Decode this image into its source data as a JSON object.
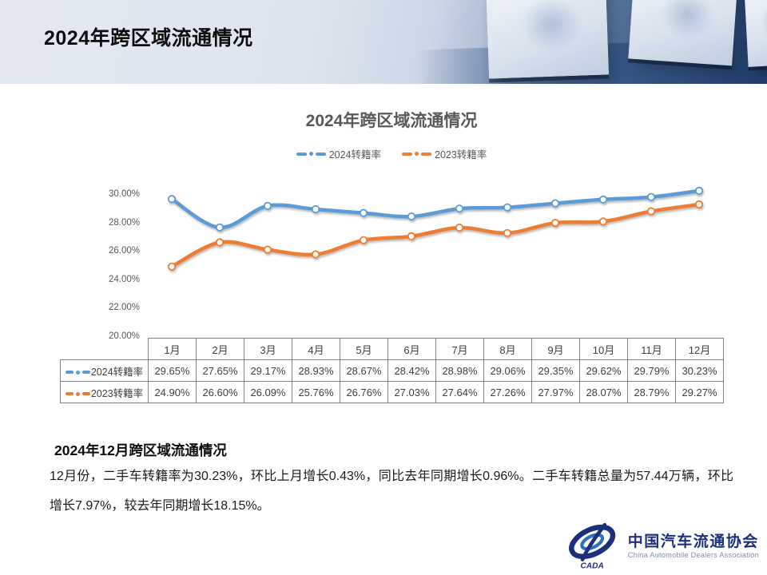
{
  "slide": {
    "header_title": "2024年跨区域流通情况",
    "section_title": "2024年12月跨区域流通情况",
    "body_text": "12月份，二手车转籍率为30.23%，环比上月增长0.43%，同比去年同期增长0.96%。二手车转籍总量为57.44万辆，环比增长7.97%，较去年同期增长18.15%。"
  },
  "chart_data": {
    "type": "line",
    "title": "2024年跨区域流通情况",
    "categories": [
      "1月",
      "2月",
      "3月",
      "4月",
      "5月",
      "6月",
      "7月",
      "8月",
      "9月",
      "10月",
      "11月",
      "12月"
    ],
    "series": [
      {
        "name": "2024转籍率",
        "color": "#5B9BD5",
        "values": [
          29.65,
          27.65,
          29.17,
          28.93,
          28.67,
          28.42,
          28.98,
          29.06,
          29.35,
          29.62,
          29.79,
          30.23
        ]
      },
      {
        "name": "2023转籍率",
        "color": "#ED7D31",
        "values": [
          24.9,
          26.6,
          26.09,
          25.76,
          26.76,
          27.03,
          27.64,
          27.26,
          27.97,
          28.07,
          28.79,
          29.27
        ]
      }
    ],
    "ylim": [
      20,
      30
    ],
    "ytick_labels": [
      "30.00%",
      "28.00%",
      "26.00%",
      "24.00%",
      "22.00%",
      "20.00%"
    ],
    "grid": false,
    "legend_position": "top",
    "data_table": true,
    "marker_style": "open-circle",
    "line_smooth": true
  },
  "footer": {
    "logo_badge": "CADA",
    "logo_cn": "中国汽车流通协会",
    "logo_en": "China Automobile Dealers Association",
    "logo_navy": "#1c2f7c",
    "logo_blue": "#2e6fc0",
    "logo_en_color": "#7d8fbb"
  }
}
